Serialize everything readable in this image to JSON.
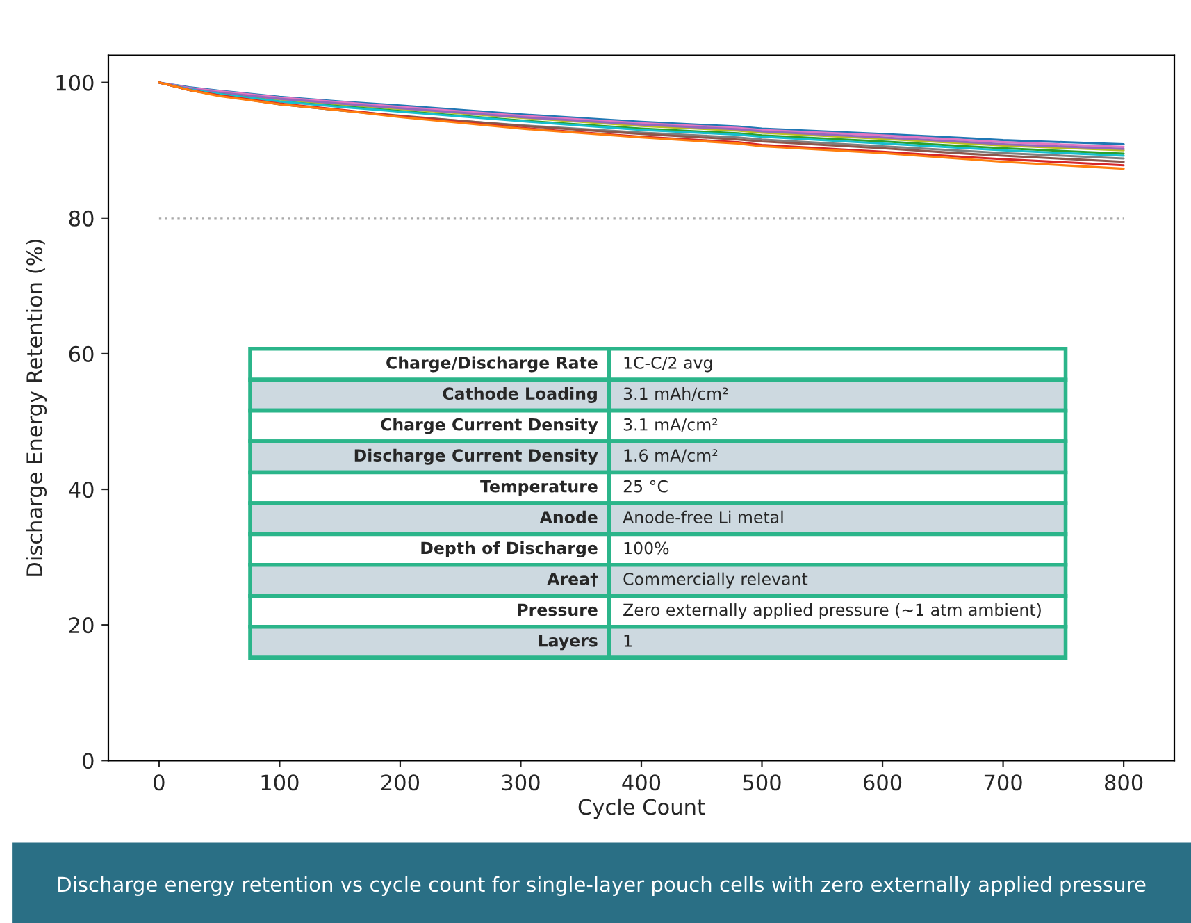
{
  "chart_data": {
    "type": "line",
    "xlabel": "Cycle Count",
    "ylabel": "Discharge Energy Retention (%)",
    "x": [
      0,
      25,
      50,
      100,
      150,
      200,
      300,
      400,
      480,
      500,
      600,
      670,
      700,
      800
    ],
    "xlim": [
      -42,
      842
    ],
    "xticks": [
      0,
      100,
      200,
      300,
      400,
      500,
      600,
      700,
      800
    ],
    "ylim": [
      0,
      104
    ],
    "yticks": [
      0,
      20,
      40,
      60,
      80,
      100
    ],
    "grid": false,
    "legend": false,
    "marker": "none",
    "line_style": "solid",
    "series": [
      {
        "color": "#1f77b4",
        "values": [
          100,
          99.3,
          98.8,
          97.9,
          97.2,
          96.6,
          95.3,
          94.2,
          93.5,
          93.2,
          92.4,
          91.8,
          91.5,
          90.9
        ]
      },
      {
        "color": "#e377c2",
        "values": [
          100,
          99.2,
          98.7,
          97.8,
          97.1,
          96.4,
          95.1,
          94.0,
          93.3,
          93.0,
          92.2,
          91.5,
          91.2,
          90.5
        ]
      },
      {
        "color": "#bcbd22",
        "values": [
          null,
          null,
          98.5,
          97.5,
          96.8,
          96.1,
          94.8,
          93.6,
          92.9,
          92.6,
          91.7,
          91.0,
          90.7,
          90.0
        ]
      },
      {
        "color": "#9467bd",
        "values": [
          100,
          99.1,
          98.5,
          97.6,
          96.9,
          96.2,
          94.9,
          93.8,
          93.1,
          92.8,
          91.9,
          91.2,
          90.9,
          90.2
        ]
      },
      {
        "color": "#2ca02c",
        "values": [
          null,
          null,
          98.3,
          97.2,
          96.5,
          95.8,
          94.4,
          93.2,
          92.5,
          92.2,
          91.3,
          90.6,
          90.3,
          89.5
        ]
      },
      {
        "color": "#17becf",
        "values": [
          100,
          99.0,
          98.3,
          97.2,
          96.4,
          95.7,
          94.3,
          93.0,
          92.3,
          92.0,
          91.0,
          90.3,
          90.0,
          89.2
        ]
      },
      {
        "color": "#7f7f7f",
        "values": [
          100,
          98.9,
          98.1,
          96.8,
          95.9,
          95.0,
          93.7,
          92.6,
          91.9,
          91.6,
          90.6,
          89.9,
          89.6,
          88.8
        ]
      },
      {
        "color": "#8c564b",
        "values": [
          100,
          98.9,
          98.1,
          96.8,
          95.9,
          95.1,
          93.6,
          92.4,
          91.6,
          91.3,
          90.3,
          89.5,
          89.2,
          88.3
        ]
      },
      {
        "color": "#d62728",
        "values": [
          100,
          98.9,
          98.1,
          96.9,
          96.0,
          95.0,
          93.3,
          92.0,
          91.2,
          90.8,
          89.8,
          89.0,
          88.7,
          87.8
        ]
      },
      {
        "color": "#ff7f0e",
        "values": [
          100,
          98.9,
          98.0,
          96.8,
          95.9,
          94.9,
          93.2,
          91.9,
          91.0,
          90.6,
          89.6,
          88.7,
          88.3,
          87.3
        ]
      }
    ],
    "ref_lines": [
      {
        "axis": "y",
        "value": 80,
        "color": "#aaaaaa",
        "line_style": "dotted"
      }
    ],
    "annotations": [
      "Charge/Discharge Rate",
      "1C-C/2 avg",
      "Cathode Loading",
      "3.1 mAh/cm²",
      "Charge Current Density",
      "3.1 mA/cm²",
      "Discharge Current Density",
      "1.6 mA/cm²",
      "Temperature",
      "25 °C",
      "Anode",
      "Anode-free Li metal",
      "Depth of Discharge",
      "100%",
      "Area†",
      "Commercially relevant",
      "Pressure",
      "Zero externally applied pressure (~1 atm ambient)",
      "Layers",
      "1",
      "Discharge energy retention vs cycle count for single-layer pouch cells with zero externally applied pressure"
    ]
  }
}
